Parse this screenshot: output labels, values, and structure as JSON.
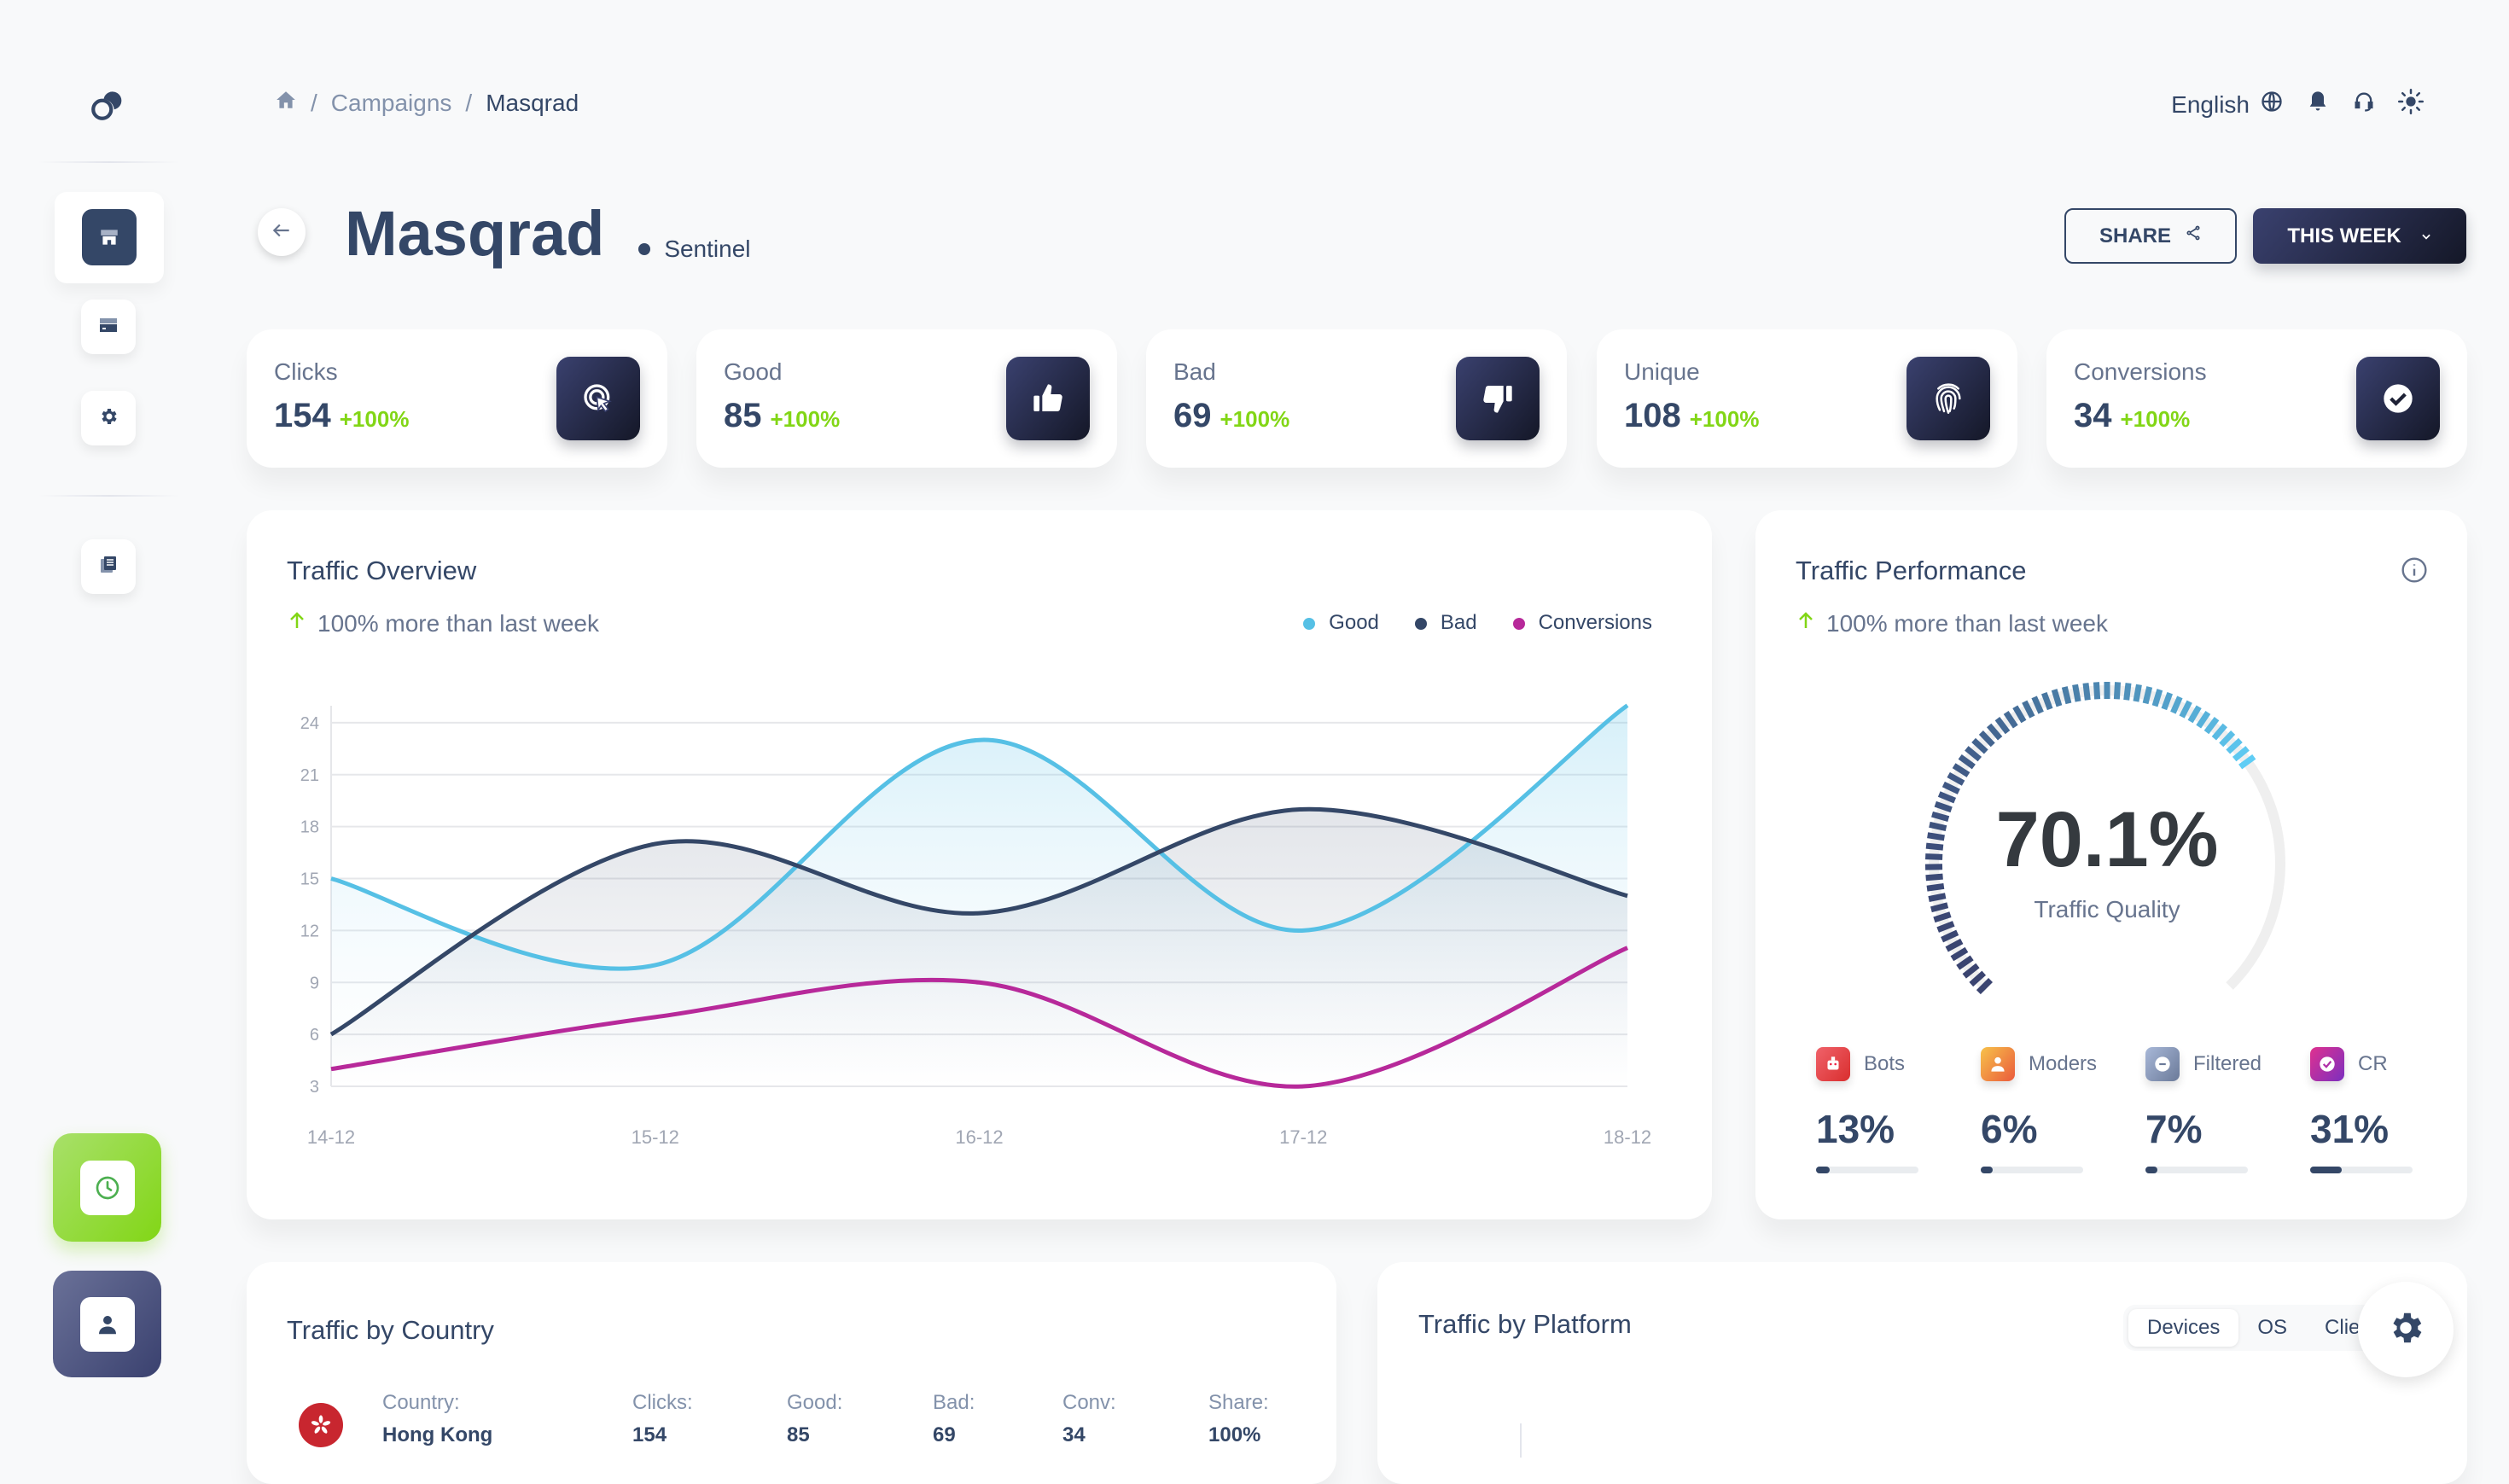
{
  "breadcrumb": {
    "home_icon": "home-icon",
    "items": [
      "Campaigns",
      "Masqrad"
    ],
    "separator": "/"
  },
  "header": {
    "language": "English"
  },
  "page": {
    "title": "Masqrad",
    "status": "Sentinel",
    "share_label": "SHARE",
    "period_label": "THIS WEEK"
  },
  "stats": [
    {
      "label": "Clicks",
      "value": "154",
      "change": "+100%",
      "icon": "cursor-click-icon"
    },
    {
      "label": "Good",
      "value": "85",
      "change": "+100%",
      "icon": "thumbs-up-icon"
    },
    {
      "label": "Bad",
      "value": "69",
      "change": "+100%",
      "icon": "thumbs-down-icon"
    },
    {
      "label": "Unique",
      "value": "108",
      "change": "+100%",
      "icon": "fingerprint-icon"
    },
    {
      "label": "Conversions",
      "value": "34",
      "change": "+100%",
      "icon": "check-circle-icon"
    }
  ],
  "overview": {
    "title": "Traffic Overview",
    "subtitle": "100% more than last week"
  },
  "chart_data": {
    "type": "line",
    "title": "Traffic Overview",
    "x": [
      "14-12",
      "15-12",
      "16-12",
      "17-12",
      "18-12"
    ],
    "yticks": [
      3,
      6,
      9,
      12,
      15,
      18,
      21,
      24
    ],
    "ylim": [
      3,
      25
    ],
    "legend": "top-right",
    "grid": true,
    "series": [
      {
        "name": "Good",
        "color": "#56c0e5",
        "values": [
          15,
          10,
          23,
          12,
          25
        ]
      },
      {
        "name": "Bad",
        "color": "#344767",
        "values": [
          6,
          17,
          13,
          19,
          14
        ]
      },
      {
        "name": "Conversions",
        "color": "#b7299a",
        "values": [
          4,
          7,
          9,
          3,
          11
        ]
      }
    ]
  },
  "performance": {
    "title": "Traffic Performance",
    "subtitle": "100% more than last week",
    "gauge_value": 70.1,
    "gauge_text": "70.1%",
    "gauge_label": "Traffic Quality",
    "metrics": [
      {
        "label": "Bots",
        "value": "13%",
        "fraction": 0.13,
        "c1": "#f0626a",
        "c2": "#d92e2e"
      },
      {
        "label": "Moders",
        "value": "6%",
        "fraction": 0.06,
        "c1": "#f7c24a",
        "c2": "#ea5a3c"
      },
      {
        "label": "Filtered",
        "value": "7%",
        "fraction": 0.07,
        "c1": "#a8b8d8",
        "c2": "#6b7a99"
      },
      {
        "label": "CR",
        "value": "31%",
        "fraction": 0.31,
        "c1": "#e0318f",
        "c2": "#7b2fbf"
      }
    ]
  },
  "country": {
    "title": "Traffic by Country",
    "headers": [
      "Country:",
      "Clicks:",
      "Good:",
      "Bad:",
      "Conv:",
      "Share:"
    ],
    "row": [
      "Hong Kong",
      "154",
      "85",
      "69",
      "34",
      "100%"
    ]
  },
  "platform": {
    "title": "Traffic by Platform",
    "tabs": [
      "Devices",
      "OS",
      "Clients"
    ]
  }
}
